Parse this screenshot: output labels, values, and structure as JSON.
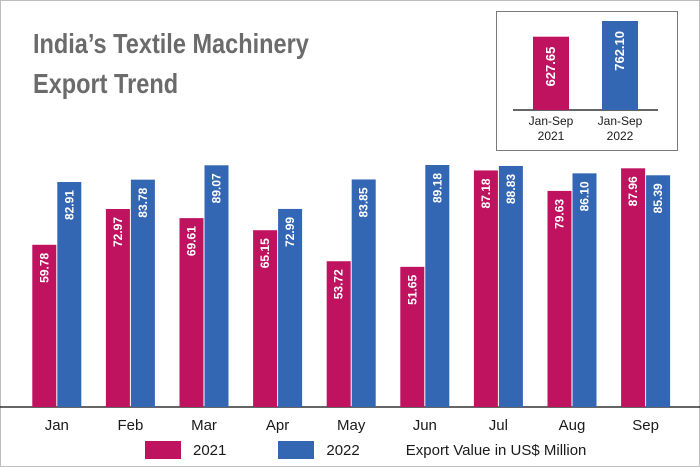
{
  "title": {
    "line1": "India’s Textile Machinery",
    "line2": "Export Trend"
  },
  "colors": {
    "series_2021": "#c0135f",
    "series_2022": "#3366b3",
    "axis": "#333333"
  },
  "legend": {
    "item1": "2021",
    "item2": "2022",
    "note": "Export Value in US$ Million"
  },
  "chart_data": [
    {
      "type": "bar",
      "categories": [
        "Jan",
        "Feb",
        "Mar",
        "Apr",
        "May",
        "Jun",
        "Jul",
        "Aug",
        "Sep"
      ],
      "series": [
        {
          "name": "2021",
          "values": [
            59.78,
            72.97,
            69.61,
            65.15,
            53.72,
            51.65,
            87.18,
            79.63,
            87.96
          ]
        },
        {
          "name": "2022",
          "values": [
            82.91,
            83.78,
            89.07,
            72.99,
            83.85,
            89.18,
            88.83,
            86.1,
            85.39
          ]
        }
      ],
      "data_labels": true,
      "ylim": [
        0,
        89.18
      ],
      "grid": false,
      "legend_position": "bottom",
      "note": "Export Value in US$ Million"
    },
    {
      "type": "bar",
      "categories": [
        "Jan-Sep 2021",
        "Jan-Sep 2022"
      ],
      "category_lines": [
        [
          "Jan-Sep",
          "2021"
        ],
        [
          "Jan-Sep",
          "2022"
        ]
      ],
      "values": [
        627.65,
        762.1
      ],
      "data_labels": true,
      "ylim": [
        0,
        762.1
      ],
      "grid": false
    }
  ]
}
